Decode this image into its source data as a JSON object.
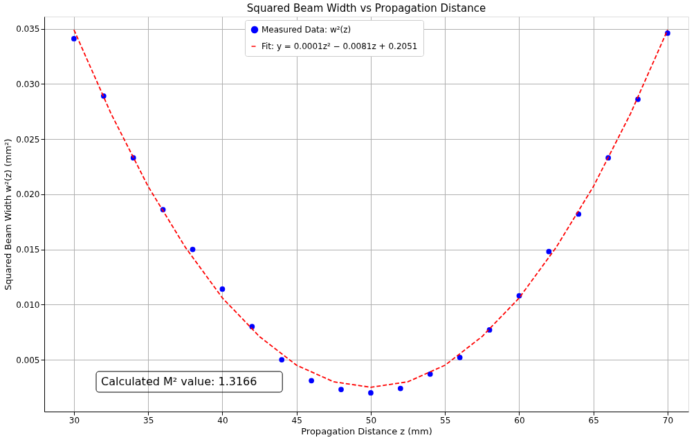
{
  "chart_data": {
    "type": "scatter",
    "title": "Squared Beam Width vs Propagation Distance",
    "xlabel": "Propagation Distance z (mm)",
    "ylabel": "Squared Beam Width w²(z) (mm²)",
    "series": [
      {
        "name": "Measured Data: w²(z)",
        "color": "#0000ff",
        "marker": "circle",
        "x": [
          30,
          32,
          34,
          36,
          38,
          40,
          42,
          44,
          46,
          48,
          50,
          52,
          54,
          56,
          58,
          60,
          62,
          64,
          66,
          68,
          70
        ],
        "values": [
          0.0341,
          0.0289,
          0.0233,
          0.0186,
          0.015,
          0.0114,
          0.008,
          0.005,
          0.0031,
          0.0023,
          0.002,
          0.0024,
          0.0037,
          0.0052,
          0.0077,
          0.0108,
          0.0148,
          0.0182,
          0.0233,
          0.0286,
          0.0346
        ]
      },
      {
        "name": "Fit: y = 0.0001z² − 0.0081z + 0.2051",
        "type": "line",
        "color": "#ff0000",
        "line_style": "dashed",
        "marker": "none",
        "x": [
          30,
          32.5,
          35,
          37.5,
          40,
          42.5,
          45,
          47.5,
          50,
          52.5,
          55,
          57.5,
          60,
          62.5,
          65,
          67.5,
          70
        ],
        "values": [
          0.0349,
          0.0273,
          0.0207,
          0.0152,
          0.0106,
          0.0071,
          0.0045,
          0.003,
          0.0025,
          0.003,
          0.0045,
          0.0071,
          0.0106,
          0.0152,
          0.0207,
          0.0273,
          0.0349
        ]
      }
    ],
    "xlim": [
      28,
      71.4
    ],
    "xticks": [
      30,
      35,
      40,
      45,
      50,
      55,
      60,
      65,
      70
    ],
    "ylim": [
      0.0003,
      0.0361
    ],
    "yticks": [
      {
        "value": 0.005,
        "label": "0.005"
      },
      {
        "value": 0.01,
        "label": "0.010"
      },
      {
        "value": 0.015,
        "label": "0.015"
      },
      {
        "value": 0.02,
        "label": "0.020"
      },
      {
        "value": 0.025,
        "label": "0.025"
      },
      {
        "value": 0.03,
        "label": "0.030"
      },
      {
        "value": 0.035,
        "label": "0.035"
      }
    ],
    "grid": true,
    "legend": "top",
    "annotations": [
      "Calculated M² value: 1.3166"
    ]
  }
}
